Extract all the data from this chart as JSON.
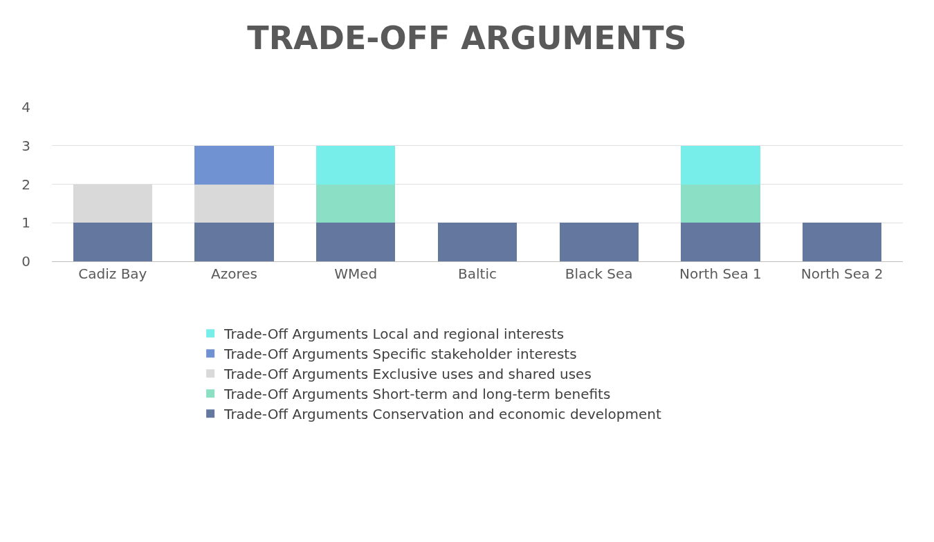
{
  "chart_data": {
    "type": "bar",
    "title": "TRADE-OFF ARGUMENTS",
    "stacked": true,
    "categories": [
      "Cadiz Bay",
      "Azores",
      "WMed",
      "Baltic",
      "Black Sea",
      "North Sea 1",
      "North Sea 2"
    ],
    "series": [
      {
        "name": "Trade-Off Arguments Conservation and economic development",
        "color": "#64789f",
        "values": [
          1,
          1,
          1,
          1,
          1,
          1,
          1
        ]
      },
      {
        "name": "Trade-Off Arguments Short-term and long-term benefits",
        "color": "#8adfc4",
        "values": [
          null,
          null,
          1,
          null,
          null,
          1,
          null
        ]
      },
      {
        "name": "Trade-Off Arguments Exclusive uses and shared uses",
        "color": "#d9d9d9",
        "values": [
          1,
          1,
          null,
          null,
          null,
          null,
          null
        ]
      },
      {
        "name": "Trade-Off Arguments Specific stakeholder interests",
        "color": "#7192d2",
        "values": [
          null,
          1,
          null,
          null,
          null,
          null,
          null
        ]
      },
      {
        "name": "Trade-Off Arguments Local and regional interests",
        "color": "#77eeea",
        "values": [
          null,
          null,
          1,
          null,
          null,
          1,
          null
        ]
      }
    ],
    "ylim": [
      0,
      4
    ],
    "yticks": [
      0,
      1,
      2,
      3,
      4
    ],
    "grid": "y",
    "legend": "bottom"
  }
}
